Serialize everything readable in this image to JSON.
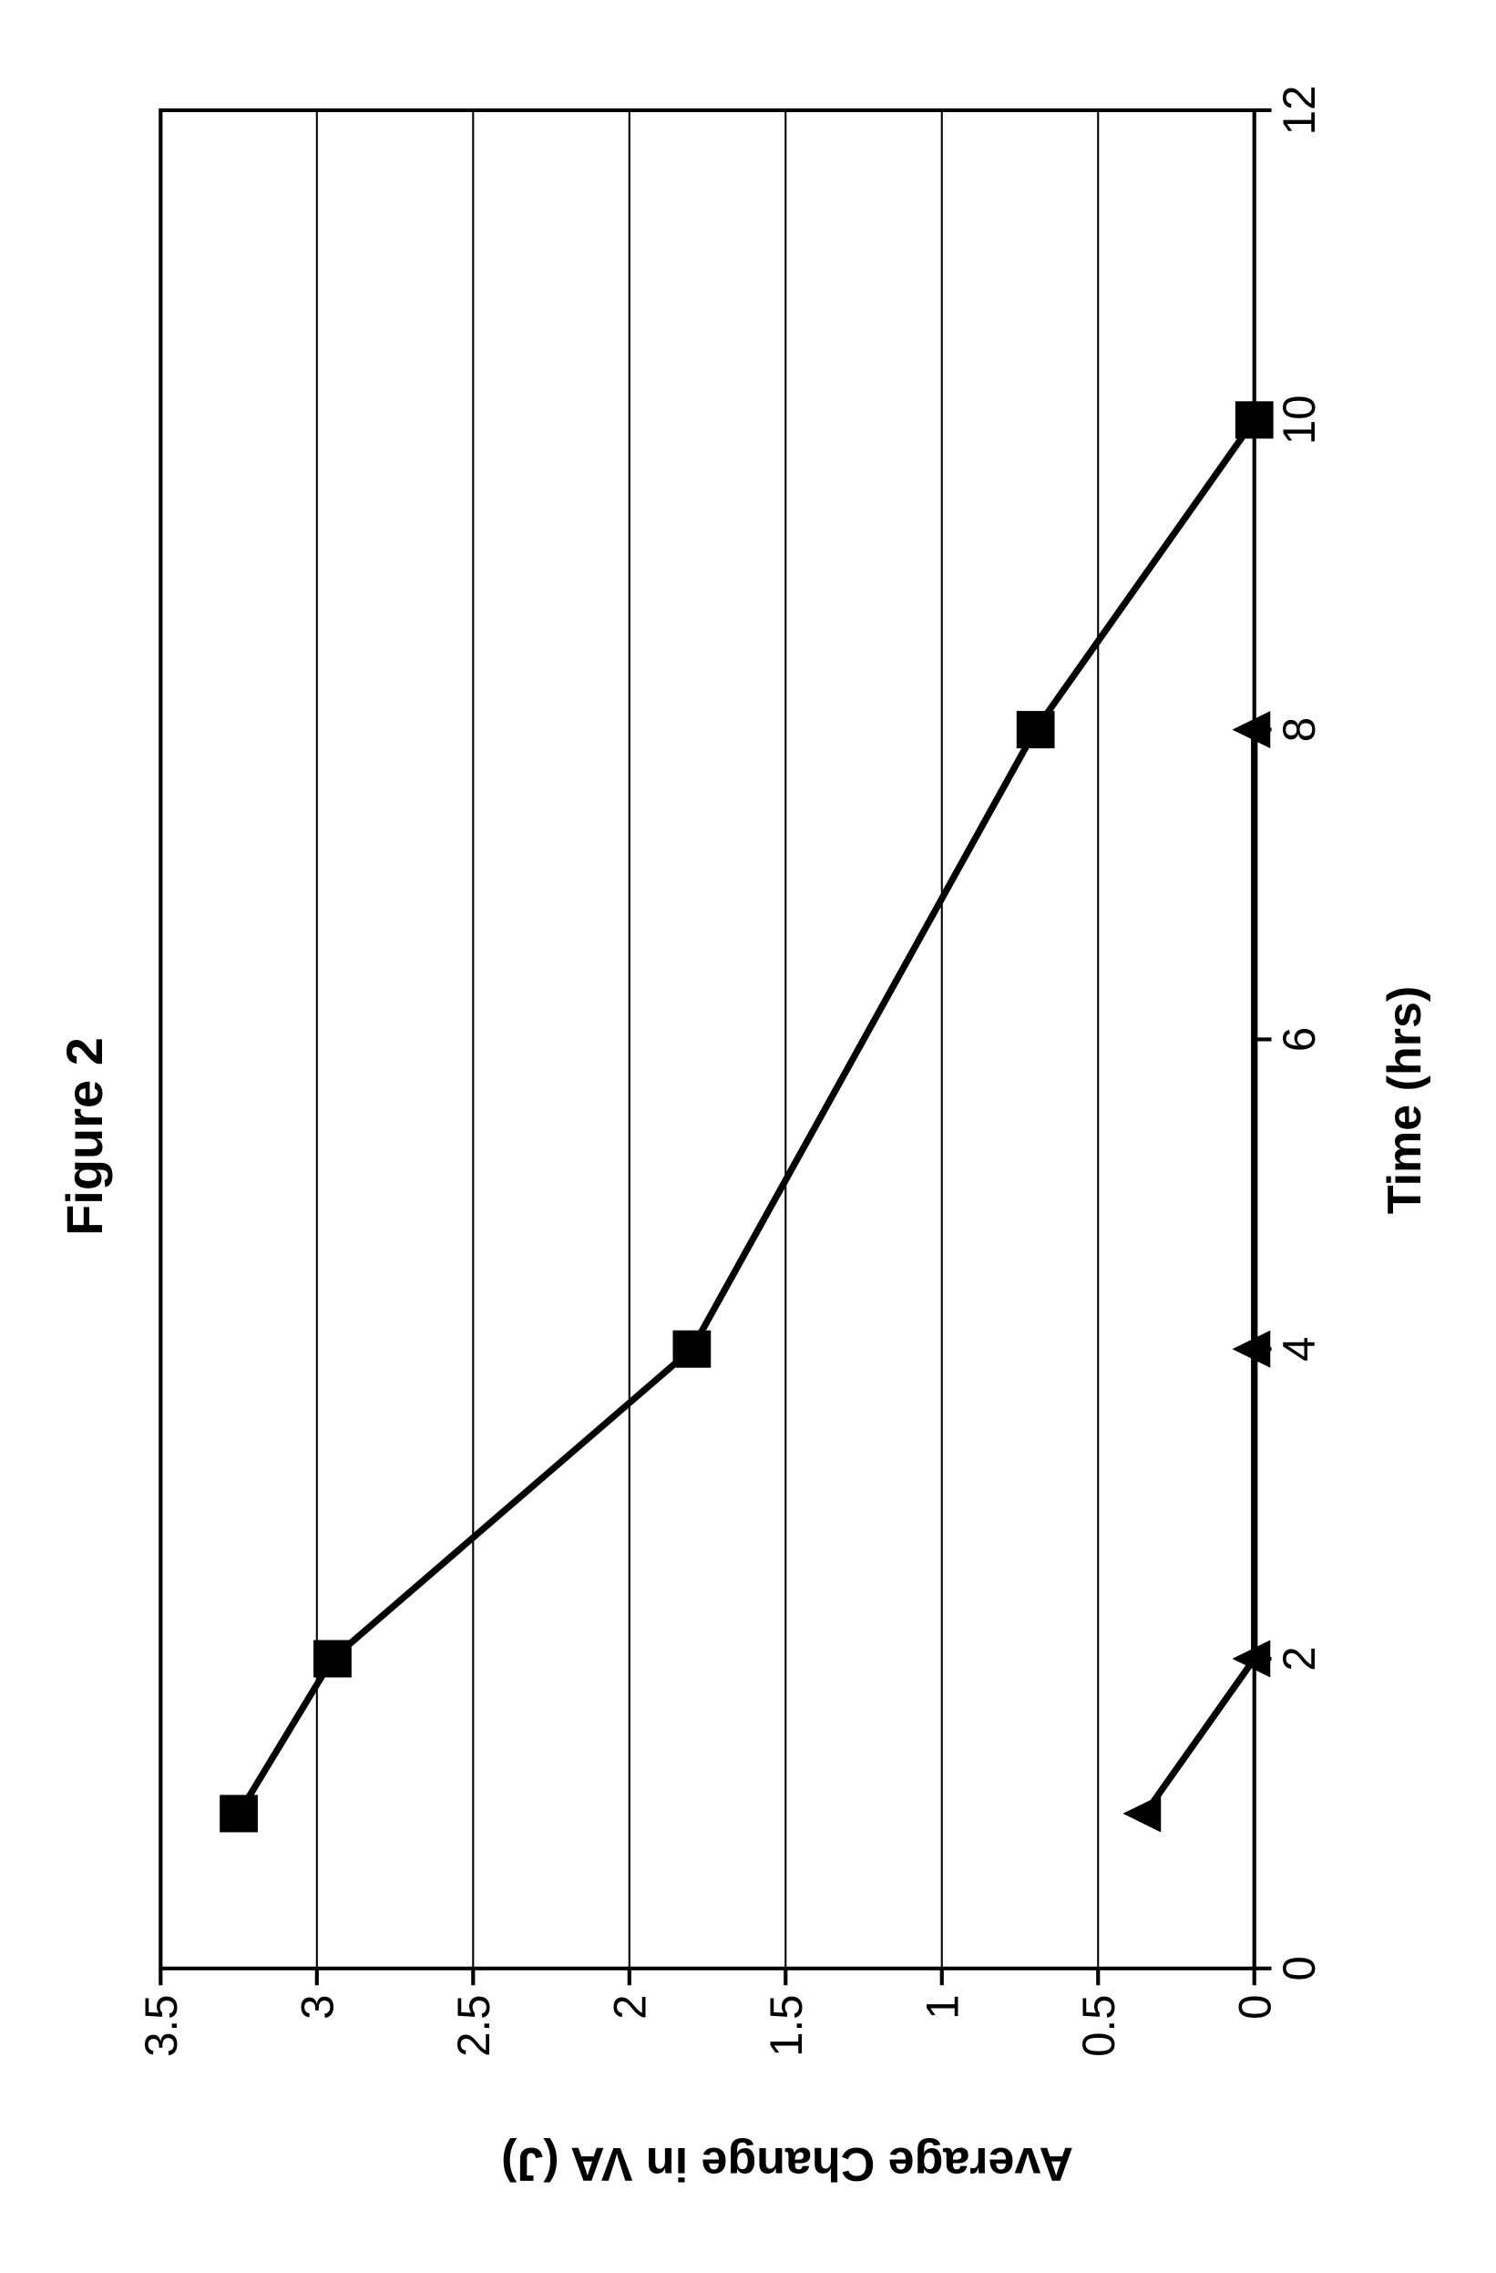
{
  "figure": {
    "title": "Figure 2",
    "title_fontsize": 56,
    "xlabel": "Time (hrs)",
    "ylabel": "Average Change in VA (J)",
    "label_fontsize": 52,
    "tick_fontsize": 48,
    "background_color": "#ffffff",
    "plot_background_color": "#ffffff",
    "axis_color": "#000000",
    "grid_color": "#000000",
    "grid_on": true,
    "type": "line",
    "xlim": [
      0,
      12
    ],
    "ylim": [
      0,
      3.5
    ],
    "xticks": [
      0,
      2,
      4,
      6,
      8,
      10,
      12
    ],
    "yticks": [
      0,
      0.5,
      1,
      1.5,
      2,
      2.5,
      3,
      3.5
    ],
    "xtick_labels": [
      "0",
      "2",
      "4",
      "6",
      "8",
      "10",
      "12"
    ],
    "ytick_labels": [
      "0",
      "0.5",
      "1",
      "1.5",
      "2",
      "2.5",
      "3",
      "3.5"
    ],
    "axis_line_width": 4,
    "grid_line_width": 2,
    "series": [
      {
        "name": "square-series",
        "marker": "square",
        "marker_size": 40,
        "marker_fill": "#000000",
        "line_color": "#000000",
        "line_width": 7,
        "x": [
          1,
          2,
          4,
          8,
          10
        ],
        "y": [
          3.25,
          2.95,
          1.8,
          0.7,
          0.0
        ]
      },
      {
        "name": "triangle-series",
        "marker": "triangle",
        "marker_size": 40,
        "marker_fill": "#000000",
        "line_color": "#000000",
        "line_width": 7,
        "x": [
          1,
          2,
          4,
          8
        ],
        "y": [
          0.35,
          0.0,
          0.0,
          0.0
        ]
      }
    ]
  }
}
